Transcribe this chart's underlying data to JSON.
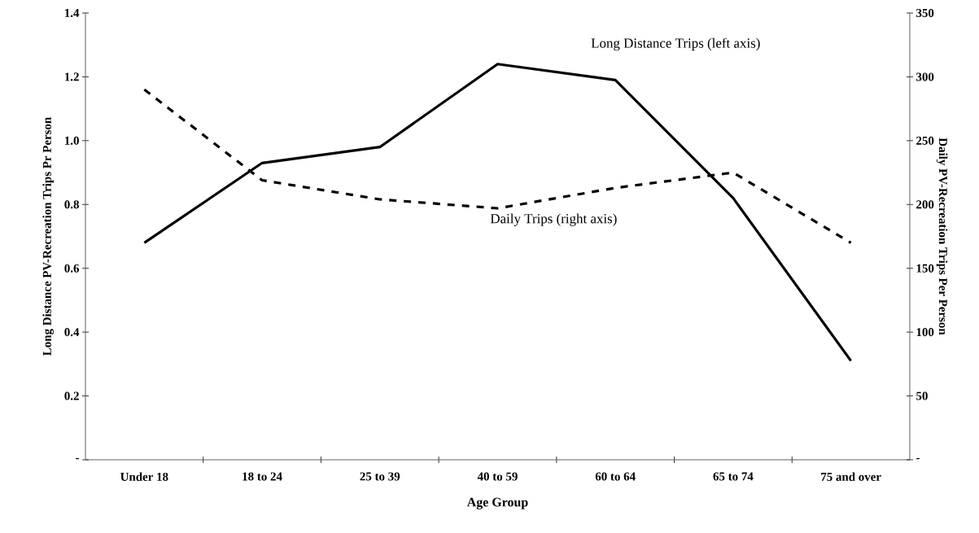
{
  "chart_data": {
    "type": "line",
    "xlabel": "Age Group",
    "ylabel": "Long Distance PV-Recreation Trips Pr Person",
    "y2label": "Daily PV-Recreation Trips Per Person",
    "categories": [
      "Under 18",
      "18 to 24",
      "25 to 39",
      "40 to 59",
      "60 to 64",
      "65 to 74",
      "75 and over"
    ],
    "series": [
      {
        "name": "Long Distance Trips (left axis)",
        "color": "#000000",
        "line_style": "solid",
        "values": [
          0.68,
          0.93,
          0.98,
          1.24,
          1.19,
          0.82,
          0.31
        ]
      },
      {
        "name": "Daily Trips (right axis)",
        "color": "#000000",
        "line_style": "dashed",
        "axis": "y2",
        "values": [
          290,
          219,
          204,
          197,
          213,
          225,
          170
        ]
      }
    ],
    "ylim": [
      0,
      1.4
    ],
    "yticks": [
      {
        "value": 0,
        "label": "-"
      },
      0.2,
      0.4,
      0.6,
      0.8,
      {
        "value": 1,
        "label": "1.0"
      },
      1.2,
      1.4
    ],
    "y2lim": [
      0,
      350
    ],
    "y2ticks": [
      {
        "value": 0,
        "label": "-"
      },
      50,
      100,
      150,
      200,
      250,
      300,
      350
    ]
  }
}
